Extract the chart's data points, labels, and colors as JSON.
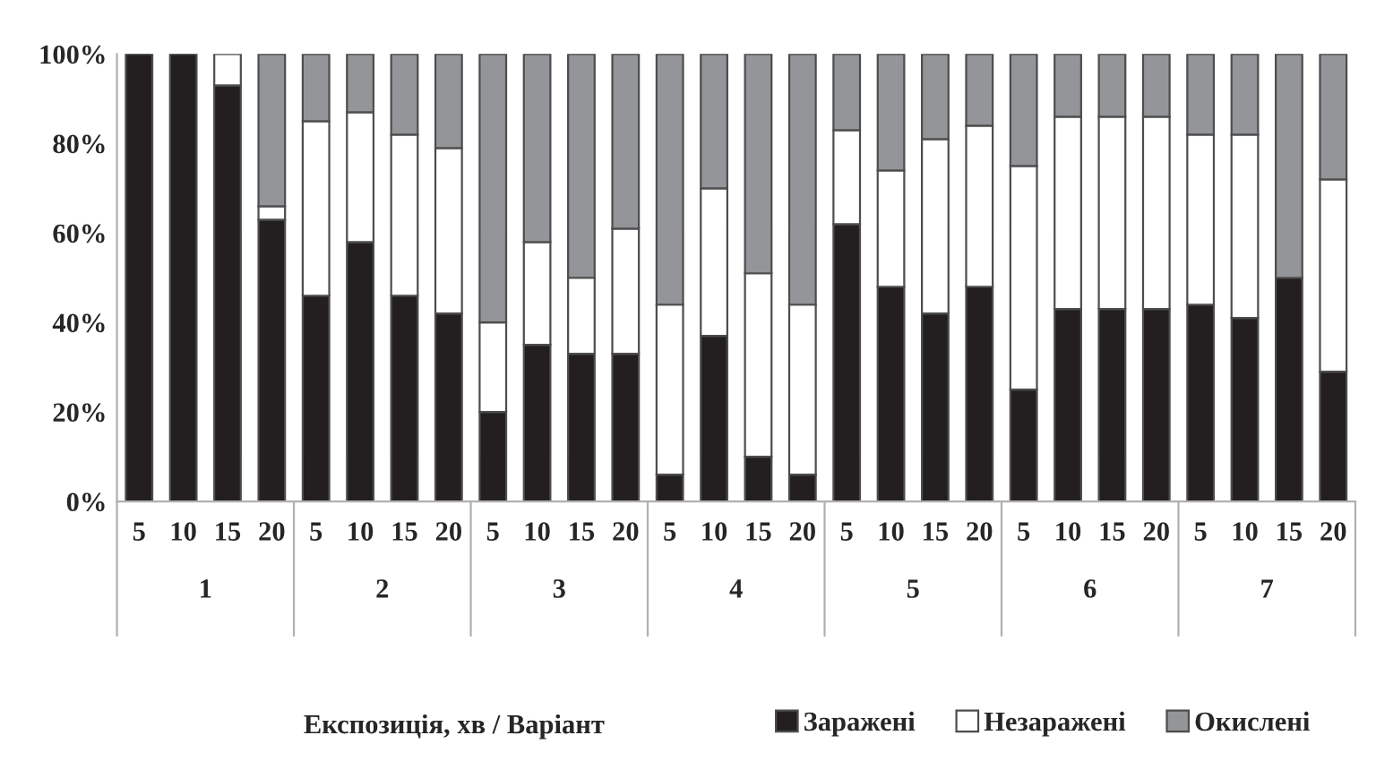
{
  "chart_data": {
    "type": "bar",
    "stacked": true,
    "categories": [
      "5",
      "10",
      "15",
      "20",
      "5",
      "10",
      "15",
      "20",
      "5",
      "10",
      "15",
      "20",
      "5",
      "10",
      "15",
      "20",
      "5",
      "10",
      "15",
      "20",
      "5",
      "10",
      "15",
      "20",
      "5",
      "10",
      "15",
      "20"
    ],
    "series": [
      {
        "name": "Заражені",
        "color": "#231f20",
        "values": [
          100,
          100,
          93,
          63,
          46,
          58,
          46,
          42,
          20,
          35,
          33,
          33,
          6,
          37,
          10,
          6,
          62,
          48,
          42,
          48,
          25,
          43,
          43,
          43,
          44,
          41,
          50,
          29
        ]
      },
      {
        "name": "Незаражені",
        "color": "#ffffff",
        "values": [
          0,
          0,
          7,
          3,
          39,
          29,
          36,
          37,
          20,
          23,
          17,
          28,
          38,
          33,
          41,
          38,
          21,
          26,
          39,
          36,
          50,
          43,
          43,
          43,
          38,
          41,
          0,
          43
        ]
      },
      {
        "name": "Окислені",
        "color": "#939598",
        "values": [
          0,
          0,
          0,
          34,
          15,
          13,
          18,
          21,
          60,
          42,
          50,
          39,
          56,
          30,
          49,
          56,
          17,
          26,
          19,
          16,
          25,
          14,
          14,
          14,
          18,
          18,
          50,
          28
        ]
      }
    ],
    "ylim": [
      0,
      100
    ],
    "yticks": [
      {
        "value": 0,
        "label": "0%"
      },
      {
        "value": 20,
        "label": "20%"
      },
      {
        "value": 40,
        "label": "40%"
      },
      {
        "value": 60,
        "label": "60%"
      },
      {
        "value": 80,
        "label": "80%"
      },
      {
        "value": 100,
        "label": "100%"
      }
    ],
    "annotations": [
      "1",
      "2",
      "3",
      "4",
      "5",
      "6",
      "7",
      "Експозиція, хв / Варіант"
    ],
    "grid": false,
    "legend": "bottom right"
  }
}
